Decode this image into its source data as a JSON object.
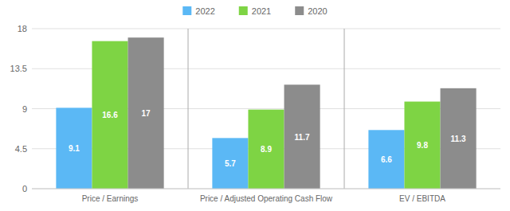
{
  "chart_data": {
    "type": "bar",
    "categories": [
      "Price / Earnings",
      "Price / Adjusted Operating Cash Flow",
      "EV / EBITDA"
    ],
    "series": [
      {
        "name": "2022",
        "color": "#5BB8F5",
        "values": [
          9.1,
          5.7,
          6.6
        ]
      },
      {
        "name": "2021",
        "color": "#7ED444",
        "values": [
          16.6,
          8.9,
          9.8
        ]
      },
      {
        "name": "2020",
        "color": "#8C8C8C",
        "values": [
          17.0,
          11.7,
          11.3
        ]
      }
    ],
    "ylim": [
      0,
      18
    ],
    "yticks": [
      0,
      4.5,
      9,
      13.5,
      18
    ],
    "grid": true,
    "legend": "top",
    "data_labels": true
  }
}
